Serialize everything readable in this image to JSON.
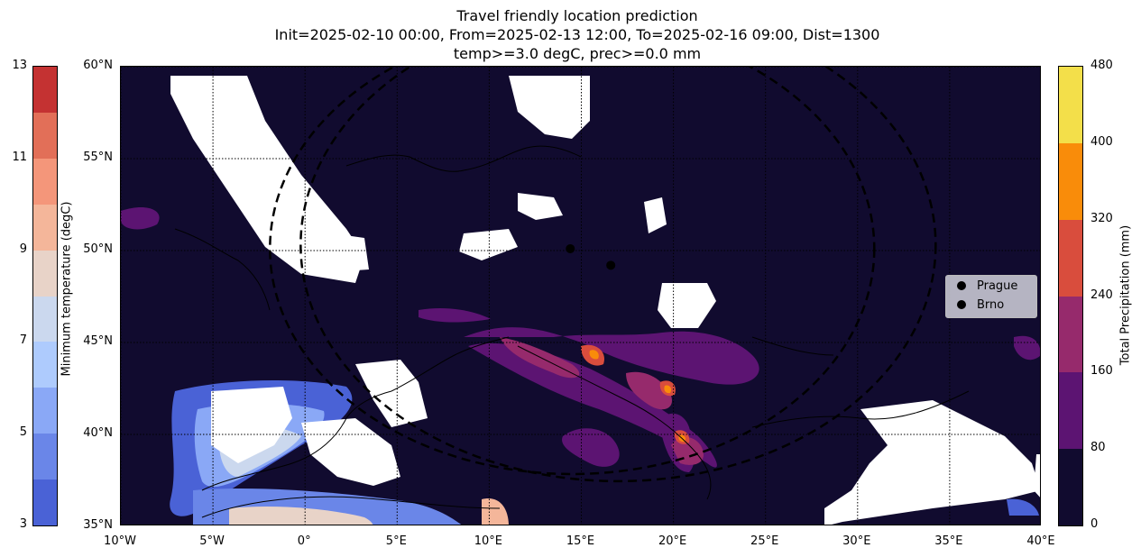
{
  "title": {
    "line1": "Travel friendly location prediction",
    "line2": "Init=2025-02-10 00:00, From=2025-02-13 12:00, To=2025-02-16 09:00, Dist=1300",
    "line3": "temp>=3.0 degC, prec>=0.0 mm"
  },
  "map": {
    "lon_range": [
      -10,
      40
    ],
    "lat_range": [
      35,
      60
    ],
    "lon_ticks": [
      "10°W",
      "5°W",
      "0°",
      "5°E",
      "10°E",
      "15°E",
      "20°E",
      "25°E",
      "30°E",
      "35°E",
      "40°E"
    ],
    "lat_ticks": [
      "35°N",
      "40°N",
      "45°N",
      "50°N",
      "55°N",
      "60°N"
    ],
    "background_color": "#110b2f",
    "mask_color": "#ffffff",
    "cities": [
      {
        "name": "Prague",
        "lon": 14.4,
        "lat": 50.1
      },
      {
        "name": "Brno",
        "lon": 16.6,
        "lat": 49.2
      }
    ],
    "distance_circles_km": [
      1300
    ]
  },
  "legend": {
    "items": [
      "Prague",
      "Brno"
    ]
  },
  "colorbar_temp": {
    "label": "Minimum temperature (degC)",
    "ticks": [
      "3",
      "5",
      "7",
      "9",
      "11",
      "13"
    ],
    "colors": [
      "#4a62d6",
      "#6a86e8",
      "#8aa8f6",
      "#aecbfd",
      "#cbd8ee",
      "#e8d3c8",
      "#f4b69a",
      "#f4967a",
      "#e26f58",
      "#c43232"
    ]
  },
  "colorbar_prec": {
    "label": "Total Precipitation (mm)",
    "ticks": [
      "0",
      "80",
      "160",
      "240",
      "320",
      "400",
      "480"
    ],
    "colors": [
      "#110b2f",
      "#5c1472",
      "#962a6c",
      "#d94d3d",
      "#f98c0a",
      "#f3df4a"
    ]
  }
}
